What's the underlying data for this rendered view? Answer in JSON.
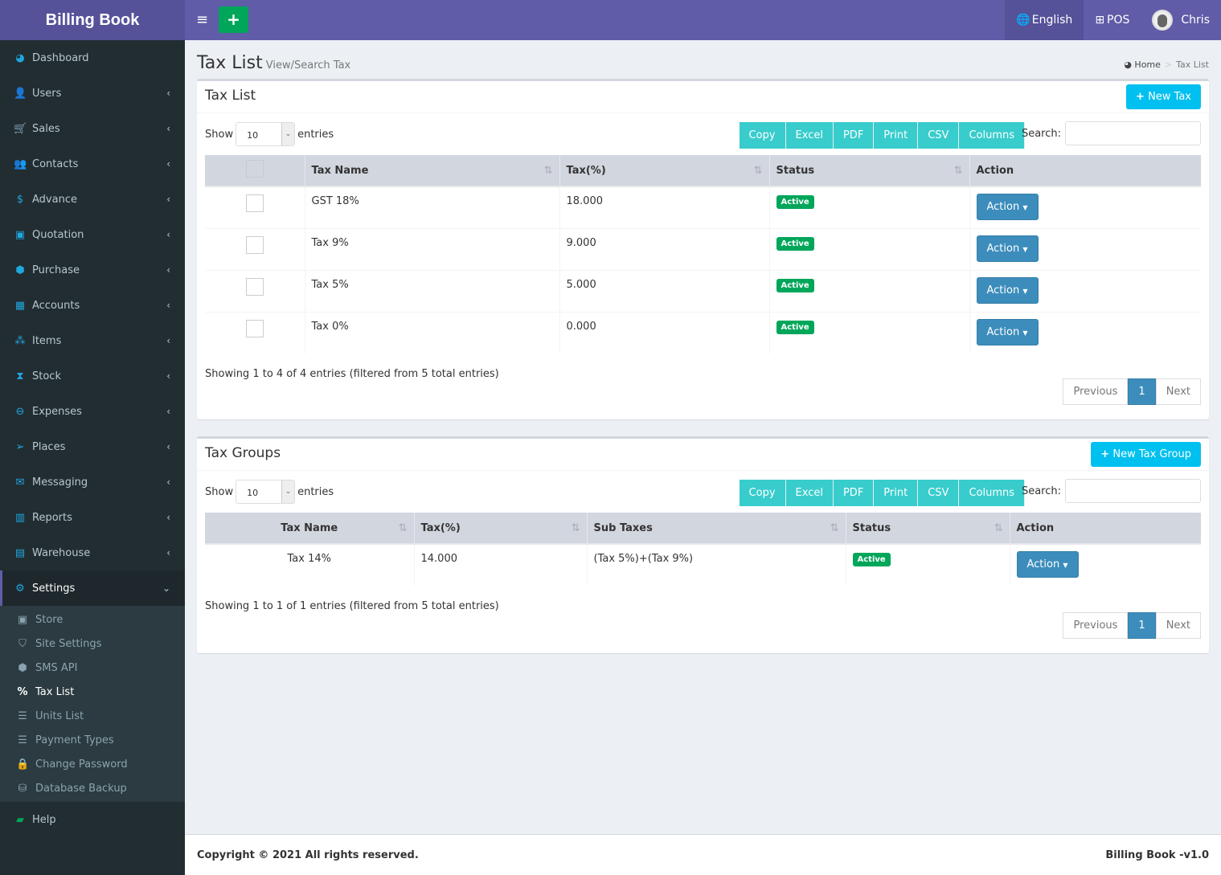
{
  "app": {
    "title": "Billing Book"
  },
  "sidebar": {
    "items": [
      {
        "label": "Dashboard",
        "icon": "dashboard-icon",
        "glyph": "◕"
      },
      {
        "label": "Users",
        "icon": "user-plus-icon",
        "glyph": "👤"
      },
      {
        "label": "Sales",
        "icon": "cart-icon",
        "glyph": "🛒"
      },
      {
        "label": "Contacts",
        "icon": "users-icon",
        "glyph": "👥"
      },
      {
        "label": "Advance",
        "icon": "dollar-icon",
        "glyph": "$"
      },
      {
        "label": "Quotation",
        "icon": "calendar-plus-icon",
        "glyph": "▣"
      },
      {
        "label": "Purchase",
        "icon": "cube-icon",
        "glyph": "⬢"
      },
      {
        "label": "Accounts",
        "icon": "th-large-icon",
        "glyph": "▦"
      },
      {
        "label": "Items",
        "icon": "cubes-icon",
        "glyph": "⁂"
      },
      {
        "label": "Stock",
        "icon": "hourglass-icon",
        "glyph": "⧗"
      },
      {
        "label": "Expenses",
        "icon": "minus-circle-icon",
        "glyph": "⊖"
      },
      {
        "label": "Places",
        "icon": "paper-plane-icon",
        "glyph": "➢"
      },
      {
        "label": "Messaging",
        "icon": "envelope-icon",
        "glyph": "✉"
      },
      {
        "label": "Reports",
        "icon": "bar-chart-icon",
        "glyph": "▥"
      },
      {
        "label": "Warehouse",
        "icon": "building-icon",
        "glyph": "▤"
      },
      {
        "label": "Settings",
        "icon": "cogs-icon",
        "glyph": "⚙"
      }
    ],
    "settings_sub": [
      {
        "label": "Store",
        "icon": "suitcase-icon",
        "glyph": "▣"
      },
      {
        "label": "Site Settings",
        "icon": "shield-icon",
        "glyph": "⛉"
      },
      {
        "label": "SMS API",
        "icon": "cube-icon",
        "glyph": "⬢"
      },
      {
        "label": "Tax List",
        "icon": "percent-icon",
        "glyph": "%"
      },
      {
        "label": "Units List",
        "icon": "list-icon",
        "glyph": "☰"
      },
      {
        "label": "Payment Types",
        "icon": "list-icon",
        "glyph": "☰"
      },
      {
        "label": "Change Password",
        "icon": "lock-icon",
        "glyph": "🔒"
      },
      {
        "label": "Database Backup",
        "icon": "database-icon",
        "glyph": "⛁"
      }
    ],
    "help": {
      "label": "Help",
      "glyph": "▰"
    }
  },
  "topbar": {
    "language": "English",
    "pos": "POS",
    "user": "Chris",
    "add": "+",
    "menu": "≡"
  },
  "page": {
    "title": "Tax List",
    "subtitle": "View/Search Tax",
    "breadcrumb": [
      "Home",
      "Tax List"
    ]
  },
  "tax_list": {
    "title": "Tax List",
    "new_button": "New Tax",
    "show": "Show",
    "entries": "entries",
    "page_size": "10",
    "search_label": "Search:",
    "export_buttons": [
      "Copy",
      "Excel",
      "PDF",
      "Print",
      "CSV",
      "Columns"
    ],
    "columns": [
      "Tax Name",
      "Tax(%)",
      "Status",
      "Action"
    ],
    "rows": [
      {
        "name": "GST 18%",
        "tax": "18.000",
        "status": "Active"
      },
      {
        "name": "Tax 9%",
        "tax": "9.000",
        "status": "Active"
      },
      {
        "name": "Tax 5%",
        "tax": "5.000",
        "status": "Active"
      },
      {
        "name": "Tax 0%",
        "tax": "0.000",
        "status": "Active"
      }
    ],
    "action_label": "Action",
    "info": "Showing 1 to 4 of 4 entries (filtered from 5 total entries)",
    "pager": {
      "prev": "Previous",
      "page": "1",
      "next": "Next"
    }
  },
  "tax_groups": {
    "title": "Tax Groups",
    "new_button": "New Tax Group",
    "show": "Show",
    "entries": "entries",
    "page_size": "10",
    "search_label": "Search:",
    "export_buttons": [
      "Copy",
      "Excel",
      "PDF",
      "Print",
      "CSV",
      "Columns"
    ],
    "columns": [
      "Tax Name",
      "Tax(%)",
      "Sub Taxes",
      "Status",
      "Action"
    ],
    "rows": [
      {
        "name": "Tax 14%",
        "tax": "14.000",
        "sub": "(Tax 5%)+(Tax 9%)",
        "status": "Active"
      }
    ],
    "action_label": "Action",
    "info": "Showing 1 to 1 of 1 entries (filtered from 5 total entries)",
    "pager": {
      "prev": "Previous",
      "page": "1",
      "next": "Next"
    }
  },
  "footer": {
    "copyright": "Copyright © 2021 All rights reserved.",
    "version": "Billing Book -v1.0"
  }
}
